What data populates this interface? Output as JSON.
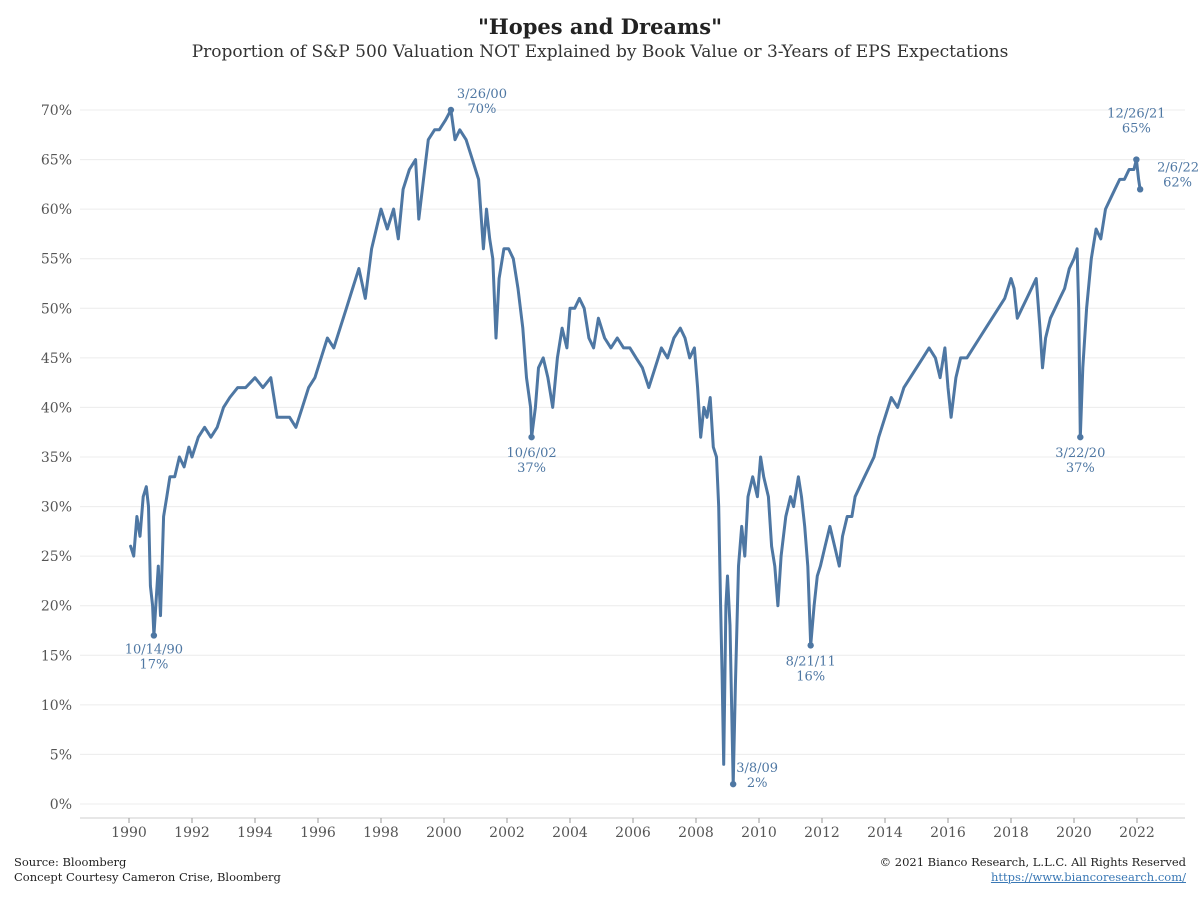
{
  "header": {
    "title": "\"Hopes and Dreams\"",
    "subtitle": "Proportion of S&P 500 Valuation NOT Explained by Book Value or 3-Years of EPS Expectations"
  },
  "footer": {
    "source": "Source: Bloomberg",
    "concept": "Concept Courtesy Cameron Crise, Bloomberg",
    "copyright": "© 2021 Bianco Research, L.L.C. All Rights Reserved",
    "url": "https://www.biancoresearch.com/"
  },
  "chart_data": {
    "type": "line",
    "title": "\"Hopes and Dreams\"",
    "subtitle": "Proportion of S&P 500 Valuation NOT Explained by Book Value or 3-Years of EPS Expectations",
    "xlabel": "",
    "ylabel": "",
    "ylim": [
      0,
      70
    ],
    "y_ticks": [
      "0%",
      "5%",
      "10%",
      "15%",
      "20%",
      "25%",
      "30%",
      "35%",
      "40%",
      "45%",
      "50%",
      "55%",
      "60%",
      "65%",
      "70%"
    ],
    "x_ticks": [
      "1990",
      "1992",
      "1994",
      "1996",
      "1998",
      "2000",
      "2002",
      "2004",
      "2006",
      "2008",
      "2010",
      "2012",
      "2014",
      "2016",
      "2018",
      "2020",
      "2022"
    ],
    "grid": "horizontal",
    "line_color": "#4e77a3",
    "series": [
      {
        "values": [
          [
            1990.05,
            26
          ],
          [
            1990.15,
            25
          ],
          [
            1990.25,
            29
          ],
          [
            1990.35,
            27
          ],
          [
            1990.45,
            31
          ],
          [
            1990.55,
            32
          ],
          [
            1990.62,
            30
          ],
          [
            1990.68,
            22
          ],
          [
            1990.75,
            20
          ],
          [
            1990.79,
            17
          ],
          [
            1990.85,
            20
          ],
          [
            1990.93,
            24
          ],
          [
            1991.0,
            19
          ],
          [
            1991.1,
            29
          ],
          [
            1991.2,
            31
          ],
          [
            1991.3,
            33
          ],
          [
            1991.45,
            33
          ],
          [
            1991.6,
            35
          ],
          [
            1991.75,
            34
          ],
          [
            1991.9,
            36
          ],
          [
            1992.0,
            35
          ],
          [
            1992.2,
            37
          ],
          [
            1992.4,
            38
          ],
          [
            1992.6,
            37
          ],
          [
            1992.8,
            38
          ],
          [
            1993.0,
            40
          ],
          [
            1993.2,
            41
          ],
          [
            1993.45,
            42
          ],
          [
            1993.7,
            42
          ],
          [
            1994.0,
            43
          ],
          [
            1994.25,
            42
          ],
          [
            1994.5,
            43
          ],
          [
            1994.7,
            39
          ],
          [
            1994.9,
            39
          ],
          [
            1995.1,
            39
          ],
          [
            1995.3,
            38
          ],
          [
            1995.5,
            40
          ],
          [
            1995.7,
            42
          ],
          [
            1995.9,
            43
          ],
          [
            1996.1,
            45
          ],
          [
            1996.3,
            47
          ],
          [
            1996.5,
            46
          ],
          [
            1996.7,
            48
          ],
          [
            1996.9,
            50
          ],
          [
            1997.1,
            52
          ],
          [
            1997.3,
            54
          ],
          [
            1997.5,
            51
          ],
          [
            1997.7,
            56
          ],
          [
            1997.85,
            58
          ],
          [
            1998.0,
            60
          ],
          [
            1998.2,
            58
          ],
          [
            1998.4,
            60
          ],
          [
            1998.55,
            57
          ],
          [
            1998.7,
            62
          ],
          [
            1998.9,
            64
          ],
          [
            1999.1,
            65
          ],
          [
            1999.2,
            59
          ],
          [
            1999.35,
            63
          ],
          [
            1999.5,
            67
          ],
          [
            1999.7,
            68
          ],
          [
            1999.85,
            68
          ],
          [
            2000.05,
            69
          ],
          [
            2000.22,
            70
          ],
          [
            2000.35,
            67
          ],
          [
            2000.5,
            68
          ],
          [
            2000.7,
            67
          ],
          [
            2000.9,
            65
          ],
          [
            2001.1,
            63
          ],
          [
            2001.25,
            56
          ],
          [
            2001.35,
            60
          ],
          [
            2001.45,
            57
          ],
          [
            2001.55,
            55
          ],
          [
            2001.65,
            47
          ],
          [
            2001.75,
            53
          ],
          [
            2001.9,
            56
          ],
          [
            2002.05,
            56
          ],
          [
            2002.2,
            55
          ],
          [
            2002.35,
            52
          ],
          [
            2002.5,
            48
          ],
          [
            2002.62,
            43
          ],
          [
            2002.75,
            40
          ],
          [
            2002.78,
            37
          ],
          [
            2002.9,
            40
          ],
          [
            2003.0,
            44
          ],
          [
            2003.15,
            45
          ],
          [
            2003.3,
            43
          ],
          [
            2003.45,
            40
          ],
          [
            2003.6,
            45
          ],
          [
            2003.75,
            48
          ],
          [
            2003.9,
            46
          ],
          [
            2004.0,
            50
          ],
          [
            2004.15,
            50
          ],
          [
            2004.3,
            51
          ],
          [
            2004.45,
            50
          ],
          [
            2004.6,
            47
          ],
          [
            2004.75,
            46
          ],
          [
            2004.9,
            49
          ],
          [
            2005.1,
            47
          ],
          [
            2005.3,
            46
          ],
          [
            2005.5,
            47
          ],
          [
            2005.7,
            46
          ],
          [
            2005.9,
            46
          ],
          [
            2006.1,
            45
          ],
          [
            2006.3,
            44
          ],
          [
            2006.5,
            42
          ],
          [
            2006.7,
            44
          ],
          [
            2006.9,
            46
          ],
          [
            2007.1,
            45
          ],
          [
            2007.3,
            47
          ],
          [
            2007.5,
            48
          ],
          [
            2007.65,
            47
          ],
          [
            2007.8,
            45
          ],
          [
            2007.95,
            46
          ],
          [
            2008.05,
            42
          ],
          [
            2008.15,
            37
          ],
          [
            2008.25,
            40
          ],
          [
            2008.35,
            39
          ],
          [
            2008.45,
            41
          ],
          [
            2008.55,
            36
          ],
          [
            2008.65,
            35
          ],
          [
            2008.72,
            30
          ],
          [
            2008.78,
            20
          ],
          [
            2008.83,
            13
          ],
          [
            2008.88,
            4
          ],
          [
            2008.95,
            20
          ],
          [
            2009.0,
            23
          ],
          [
            2009.08,
            18
          ],
          [
            2009.15,
            7
          ],
          [
            2009.18,
            2
          ],
          [
            2009.25,
            12
          ],
          [
            2009.35,
            24
          ],
          [
            2009.45,
            28
          ],
          [
            2009.55,
            25
          ],
          [
            2009.65,
            31
          ],
          [
            2009.8,
            33
          ],
          [
            2009.95,
            31
          ],
          [
            2010.05,
            35
          ],
          [
            2010.15,
            33
          ],
          [
            2010.3,
            31
          ],
          [
            2010.4,
            26
          ],
          [
            2010.5,
            24
          ],
          [
            2010.6,
            20
          ],
          [
            2010.7,
            25
          ],
          [
            2010.85,
            29
          ],
          [
            2011.0,
            31
          ],
          [
            2011.1,
            30
          ],
          [
            2011.25,
            33
          ],
          [
            2011.35,
            31
          ],
          [
            2011.45,
            28
          ],
          [
            2011.55,
            24
          ],
          [
            2011.64,
            16
          ],
          [
            2011.75,
            20
          ],
          [
            2011.85,
            23
          ],
          [
            2011.95,
            24
          ],
          [
            2012.1,
            26
          ],
          [
            2012.25,
            28
          ],
          [
            2012.4,
            26
          ],
          [
            2012.55,
            24
          ],
          [
            2012.65,
            27
          ],
          [
            2012.8,
            29
          ],
          [
            2012.95,
            29
          ],
          [
            2013.05,
            31
          ],
          [
            2013.2,
            32
          ],
          [
            2013.35,
            33
          ],
          [
            2013.5,
            34
          ],
          [
            2013.65,
            35
          ],
          [
            2013.8,
            37
          ],
          [
            2014.0,
            39
          ],
          [
            2014.2,
            41
          ],
          [
            2014.4,
            40
          ],
          [
            2014.6,
            42
          ],
          [
            2014.8,
            43
          ],
          [
            2015.0,
            44
          ],
          [
            2015.2,
            45
          ],
          [
            2015.4,
            46
          ],
          [
            2015.6,
            45
          ],
          [
            2015.75,
            43
          ],
          [
            2015.9,
            46
          ],
          [
            2016.0,
            42
          ],
          [
            2016.1,
            39
          ],
          [
            2016.25,
            43
          ],
          [
            2016.4,
            45
          ],
          [
            2016.6,
            45
          ],
          [
            2016.8,
            46
          ],
          [
            2017.0,
            47
          ],
          [
            2017.2,
            48
          ],
          [
            2017.4,
            49
          ],
          [
            2017.6,
            50
          ],
          [
            2017.8,
            51
          ],
          [
            2018.0,
            53
          ],
          [
            2018.1,
            52
          ],
          [
            2018.2,
            49
          ],
          [
            2018.35,
            50
          ],
          [
            2018.5,
            51
          ],
          [
            2018.65,
            52
          ],
          [
            2018.8,
            53
          ],
          [
            2018.92,
            48
          ],
          [
            2019.0,
            44
          ],
          [
            2019.1,
            47
          ],
          [
            2019.25,
            49
          ],
          [
            2019.4,
            50
          ],
          [
            2019.55,
            51
          ],
          [
            2019.7,
            52
          ],
          [
            2019.85,
            54
          ],
          [
            2020.0,
            55
          ],
          [
            2020.1,
            56
          ],
          [
            2020.15,
            50
          ],
          [
            2020.2,
            37
          ],
          [
            2020.28,
            44
          ],
          [
            2020.4,
            50
          ],
          [
            2020.55,
            55
          ],
          [
            2020.7,
            58
          ],
          [
            2020.85,
            57
          ],
          [
            2021.0,
            60
          ],
          [
            2021.15,
            61
          ],
          [
            2021.3,
            62
          ],
          [
            2021.45,
            63
          ],
          [
            2021.6,
            63
          ],
          [
            2021.75,
            64
          ],
          [
            2021.9,
            64
          ],
          [
            2021.98,
            65
          ],
          [
            2022.05,
            63
          ],
          [
            2022.1,
            62
          ]
        ]
      }
    ],
    "annotations": [
      {
        "date": "10/14/90",
        "label": "17%",
        "x": 1990.79,
        "y": 17
      },
      {
        "date": "3/26/00",
        "label": "70%",
        "x": 2000.22,
        "y": 70
      },
      {
        "date": "10/6/02",
        "label": "37%",
        "x": 2002.78,
        "y": 37
      },
      {
        "date": "3/8/09",
        "label": "2%",
        "x": 2009.18,
        "y": 2
      },
      {
        "date": "8/21/11",
        "label": "16%",
        "x": 2011.64,
        "y": 16
      },
      {
        "date": "3/22/20",
        "label": "37%",
        "x": 2020.2,
        "y": 37
      },
      {
        "date": "12/26/21",
        "label": "65%",
        "x": 2021.98,
        "y": 65
      },
      {
        "date": "2/6/22",
        "label": "62%",
        "x": 2022.1,
        "y": 62
      }
    ]
  }
}
